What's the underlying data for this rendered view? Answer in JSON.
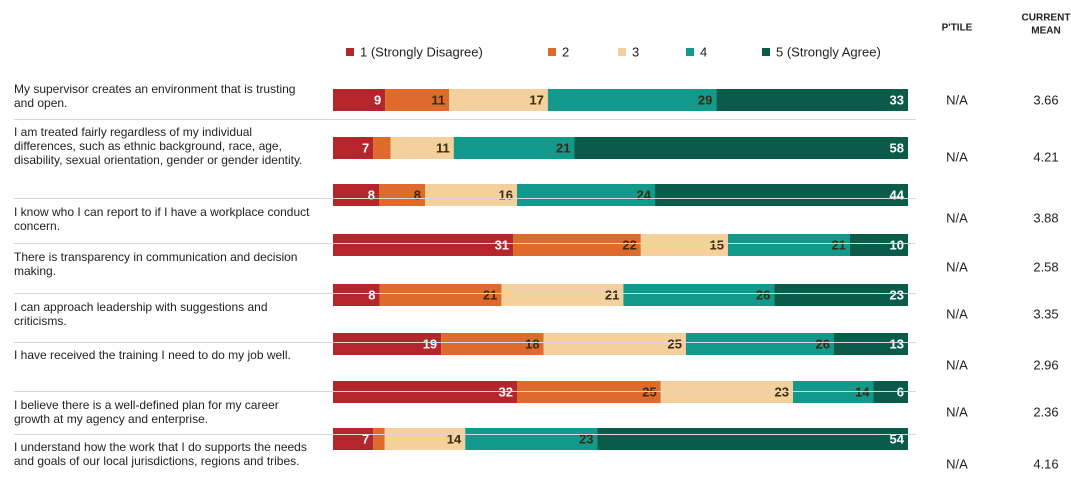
{
  "chart_data": {
    "type": "bar",
    "orientation": "horizontal",
    "stacked": true,
    "categories": [
      "My supervisor creates an environment that is trusting and open.",
      "I am treated fairly regardless of my individual differences, such as ethnic background, race, age, disability, sexual orientation, gender or gender identity.",
      "I know who I can report to if I have a workplace conduct concern.",
      "There is transparency in communication and decision making.",
      "I can approach leadership with suggestions and criticisms.",
      "I have received the training I need to do my job well.",
      "I believe there is a well-defined plan for my career growth at my agency and enterprise.",
      "I understand how the work that I do supports the needs and goals of our local jurisdictions, regions and tribes."
    ],
    "series": [
      {
        "name": "1 (Strongly Disagree)",
        "color": "#b4262c",
        "values": [
          9,
          7,
          8,
          31,
          8,
          19,
          32,
          7
        ]
      },
      {
        "name": "2",
        "color": "#de6a2c",
        "values": [
          11,
          3,
          8,
          22,
          21,
          18,
          25,
          2
        ],
        "value_labels": [
          "11",
          null,
          "8",
          "22",
          "21",
          "18",
          "25",
          null
        ]
      },
      {
        "name": "3",
        "color": "#f3d09c",
        "values": [
          17,
          11,
          16,
          15,
          21,
          25,
          23,
          14
        ]
      },
      {
        "name": "4",
        "color": "#13998b",
        "values": [
          29,
          21,
          24,
          21,
          26,
          26,
          14,
          23
        ]
      },
      {
        "name": "5 (Strongly Agree)",
        "color": "#0b5b4b",
        "values": [
          33,
          58,
          44,
          10,
          23,
          13,
          6,
          54
        ]
      }
    ],
    "ptile_header": "P'TILE",
    "mean_header": [
      "CURRENT",
      "MEAN"
    ],
    "ptile": [
      "N/A",
      "N/A",
      "N/A",
      "N/A",
      "N/A",
      "N/A",
      "N/A",
      "N/A"
    ],
    "current_mean": [
      3.66,
      4.21,
      3.88,
      2.58,
      3.35,
      2.96,
      2.36,
      4.16
    ]
  }
}
